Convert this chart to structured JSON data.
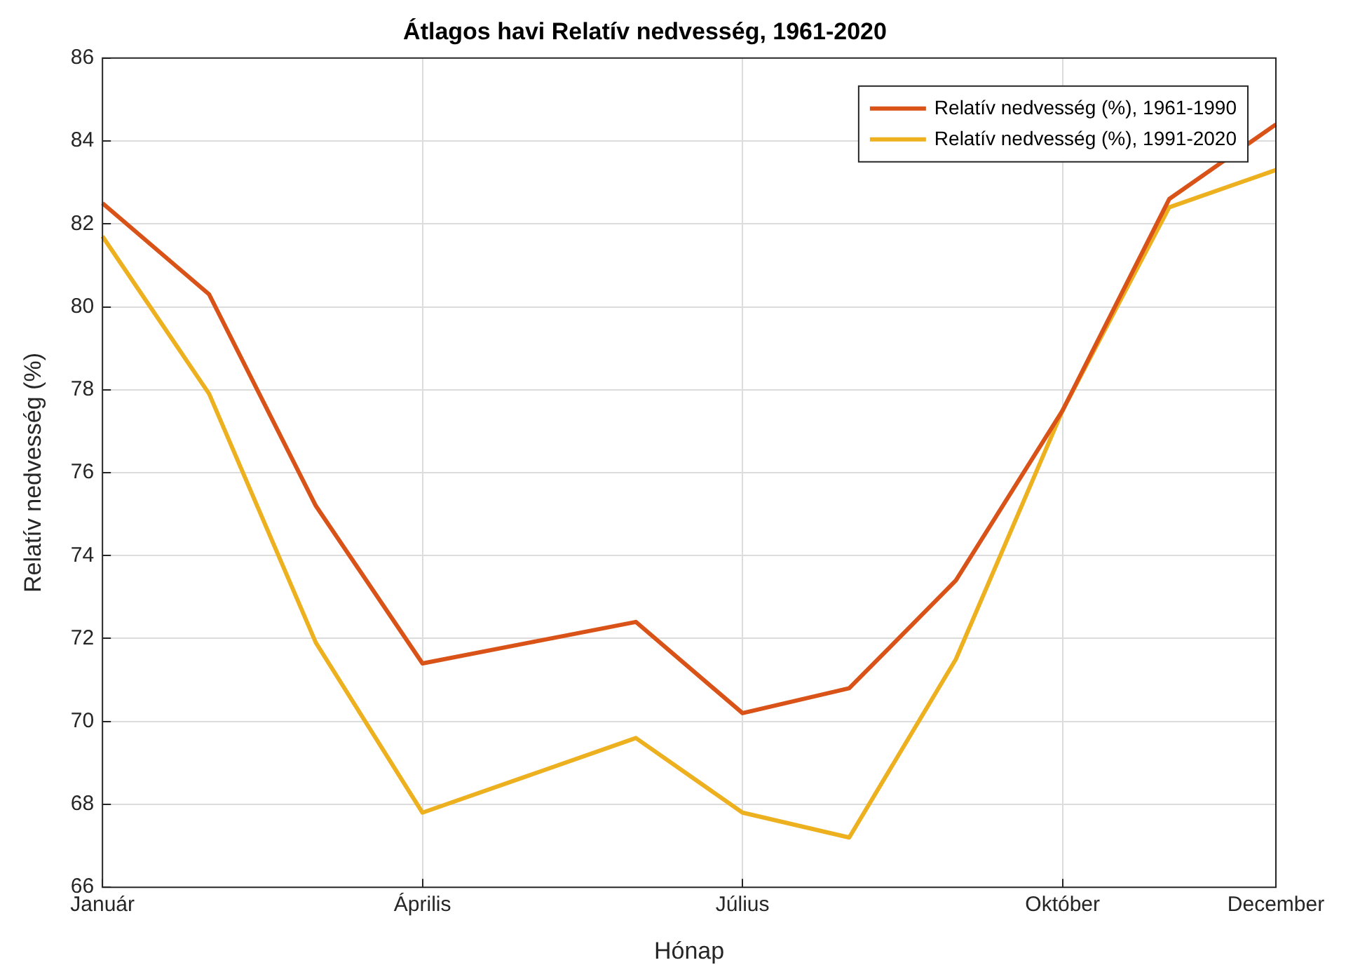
{
  "chart_data": {
    "type": "line",
    "title": "Átlagos havi Relatív nedvesség, 1961-2020",
    "xlabel": "Hónap",
    "ylabel": "Relatív nedvesség (%)",
    "categories": [
      "Január",
      null,
      null,
      "Április",
      null,
      null,
      "Július",
      null,
      null,
      "Október",
      null,
      "December"
    ],
    "series": [
      {
        "name": "Relatív nedvesség (%), 1961-1990",
        "color": "#d95319",
        "values": [
          82.5,
          80.3,
          75.2,
          71.4,
          71.9,
          72.4,
          70.2,
          70.8,
          73.4,
          77.5,
          82.6,
          84.4
        ]
      },
      {
        "name": "Relatív nedvesség (%), 1991-2020",
        "color": "#edb120",
        "values": [
          81.7,
          77.9,
          71.9,
          67.8,
          68.7,
          69.6,
          67.8,
          67.2,
          71.5,
          77.5,
          82.4,
          83.3
        ]
      }
    ],
    "ylim": [
      66,
      86
    ],
    "yticks": [
      66,
      68,
      70,
      72,
      74,
      76,
      78,
      80,
      82,
      84,
      86
    ],
    "grid": true,
    "legend": "top right",
    "marker": "none",
    "line_style": "solid"
  }
}
